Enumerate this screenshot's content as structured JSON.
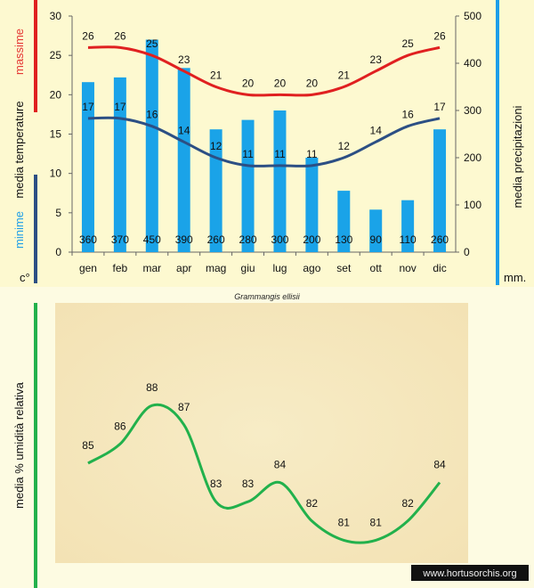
{
  "chart_data": [
    {
      "type": "bar+line",
      "title": "Grammangis ellisii",
      "categories": [
        "gen",
        "feb",
        "mar",
        "apr",
        "mag",
        "giu",
        "lug",
        "ago",
        "set",
        "ott",
        "nov",
        "dic"
      ],
      "left_axis": {
        "ylim": [
          0,
          30
        ],
        "ticks": [
          0,
          5,
          10,
          15,
          20,
          25,
          30
        ],
        "label_parts": [
          {
            "text": "media  temperature",
            "color": "#111111"
          },
          {
            "text": "massime",
            "color": "#e53935"
          },
          {
            "text": "minime",
            "color": "#1e9ee8"
          }
        ],
        "unit": "c°"
      },
      "right_axis": {
        "ylim": [
          0,
          500
        ],
        "ticks": [
          0,
          100,
          200,
          300,
          400,
          500
        ],
        "label": "media  precipitazioni",
        "unit": "mm."
      },
      "series": [
        {
          "name": "precipitazioni",
          "type": "bar",
          "axis": "right",
          "color": "#1aa3e8",
          "values": [
            360,
            370,
            450,
            390,
            260,
            280,
            300,
            200,
            130,
            90,
            110,
            260
          ]
        },
        {
          "name": "massime",
          "type": "line",
          "axis": "left",
          "color": "#e02020",
          "values": [
            26,
            26,
            25,
            23,
            21,
            20,
            20,
            20,
            21,
            23,
            25,
            26
          ]
        },
        {
          "name": "minime",
          "type": "line",
          "axis": "left",
          "color": "#2c4f84",
          "values": [
            17,
            17,
            16,
            14,
            12,
            11,
            11,
            11,
            12,
            14,
            16,
            17
          ]
        }
      ]
    },
    {
      "type": "line",
      "ylabel": "media %  umidità relativa",
      "ylim": [
        80,
        90
      ],
      "series": [
        {
          "name": "umidità relativa",
          "color": "#22b14c",
          "values": [
            85,
            86,
            88,
            87,
            83,
            83,
            84,
            82,
            81,
            81,
            82,
            84
          ]
        }
      ]
    }
  ],
  "footer": {
    "watermark": "www.hortusorchis.org"
  }
}
